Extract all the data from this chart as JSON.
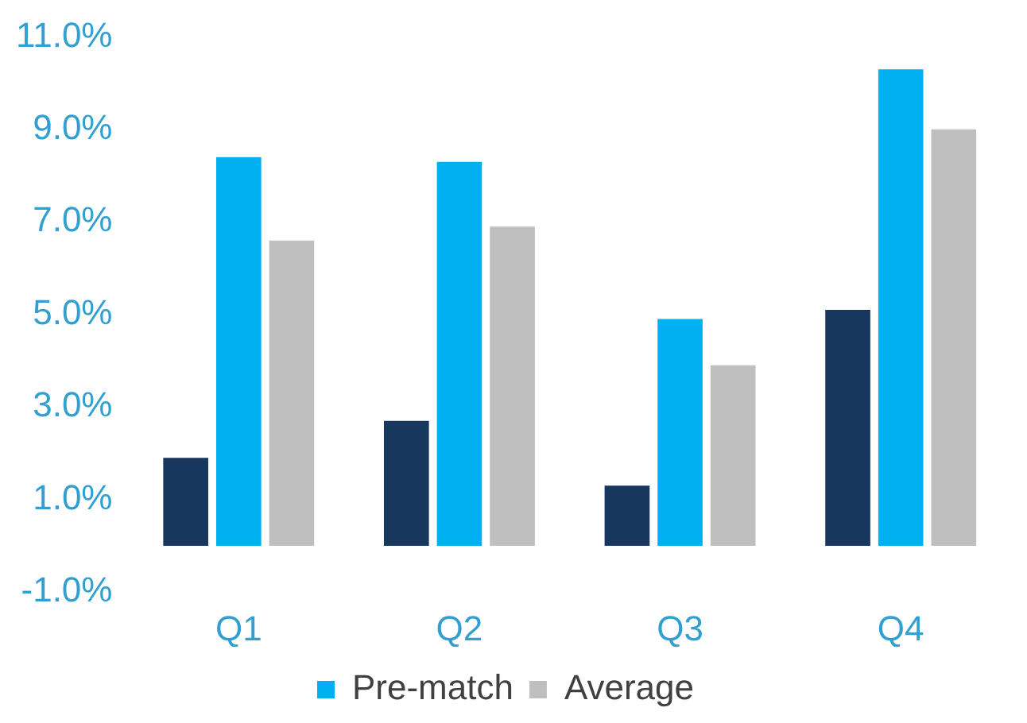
{
  "chart_data": {
    "type": "bar",
    "categories": [
      "Q1",
      "Q2",
      "Q3",
      "Q4"
    ],
    "series": [
      {
        "color": "#17375e",
        "values": [
          1.9,
          2.7,
          1.3,
          5.1
        ]
      },
      {
        "name": "Pre-match",
        "color": "#00b0f0",
        "values": [
          8.4,
          8.3,
          4.9,
          10.3
        ]
      },
      {
        "name": "Average",
        "color": "#bfbfbf",
        "values": [
          6.6,
          6.9,
          3.9,
          9.0
        ]
      }
    ],
    "ylim": [
      -1,
      11
    ],
    "yticks": [
      {
        "value": -1,
        "label": "-1.0%"
      },
      {
        "value": 1,
        "label": "1.0%"
      },
      {
        "value": 3,
        "label": "3.0%"
      },
      {
        "value": 5,
        "label": "5.0%"
      },
      {
        "value": 7,
        "label": "7.0%"
      },
      {
        "value": 9,
        "label": "9.0%"
      },
      {
        "value": 11,
        "label": "11.0%"
      }
    ],
    "legend": "bottom"
  }
}
